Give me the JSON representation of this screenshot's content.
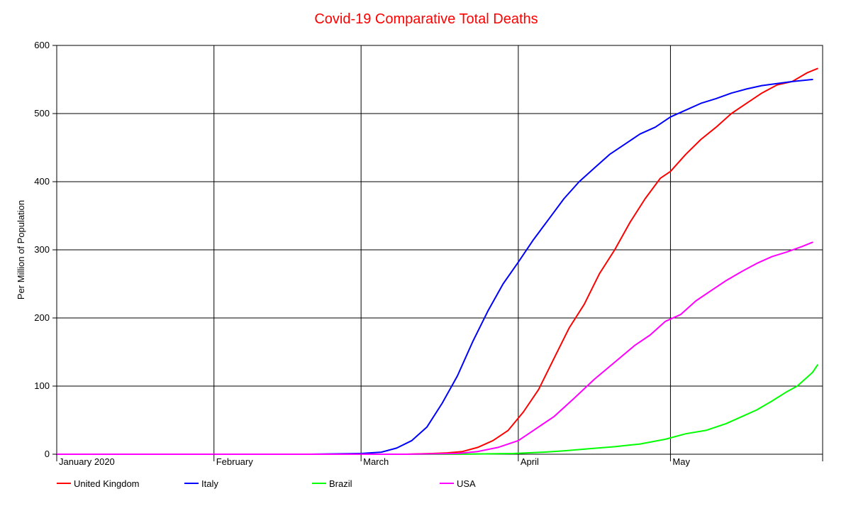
{
  "chart_data": {
    "type": "line",
    "title": "Covid-19 Comparative Total Deaths",
    "title_color": "#ff0000",
    "xlabel": "",
    "ylabel": "Per Million of Population",
    "x_range": [
      "2020-01-01",
      "2020-05-31"
    ],
    "ylim": [
      0,
      600
    ],
    "y_ticks": [
      0,
      100,
      200,
      300,
      400,
      500,
      600
    ],
    "y_tick_labels": [
      "0",
      "100",
      "200",
      "300",
      "400",
      "500",
      "600"
    ],
    "x_ticks": [
      {
        "date": "2020-01-01",
        "label": "January 2020"
      },
      {
        "date": "2020-02-01",
        "label": "February"
      },
      {
        "date": "2020-03-01",
        "label": "March"
      },
      {
        "date": "2020-04-01",
        "label": "April"
      },
      {
        "date": "2020-05-01",
        "label": "May"
      }
    ],
    "grid": true,
    "legend_position": "bottom",
    "series": [
      {
        "name": "United Kingdom",
        "color": "#ff0000",
        "points": [
          [
            "2020-01-01",
            0
          ],
          [
            "2020-03-01",
            0
          ],
          [
            "2020-03-10",
            0
          ],
          [
            "2020-03-15",
            1
          ],
          [
            "2020-03-18",
            2
          ],
          [
            "2020-03-21",
            4
          ],
          [
            "2020-03-24",
            10
          ],
          [
            "2020-03-27",
            20
          ],
          [
            "2020-03-30",
            35
          ],
          [
            "2020-04-02",
            62
          ],
          [
            "2020-04-05",
            95
          ],
          [
            "2020-04-08",
            140
          ],
          [
            "2020-04-11",
            185
          ],
          [
            "2020-04-14",
            220
          ],
          [
            "2020-04-17",
            265
          ],
          [
            "2020-04-20",
            300
          ],
          [
            "2020-04-23",
            340
          ],
          [
            "2020-04-26",
            375
          ],
          [
            "2020-04-29",
            405
          ],
          [
            "2020-05-01",
            415
          ],
          [
            "2020-05-04",
            440
          ],
          [
            "2020-05-07",
            462
          ],
          [
            "2020-05-10",
            480
          ],
          [
            "2020-05-13",
            500
          ],
          [
            "2020-05-16",
            515
          ],
          [
            "2020-05-19",
            530
          ],
          [
            "2020-05-22",
            542
          ],
          [
            "2020-05-25",
            547
          ],
          [
            "2020-05-28",
            560
          ],
          [
            "2020-05-30",
            566
          ]
        ]
      },
      {
        "name": "Italy",
        "color": "#0000ff",
        "points": [
          [
            "2020-01-01",
            0
          ],
          [
            "2020-02-20",
            0
          ],
          [
            "2020-03-01",
            1
          ],
          [
            "2020-03-05",
            3
          ],
          [
            "2020-03-08",
            9
          ],
          [
            "2020-03-11",
            20
          ],
          [
            "2020-03-14",
            40
          ],
          [
            "2020-03-17",
            75
          ],
          [
            "2020-03-20",
            115
          ],
          [
            "2020-03-23",
            165
          ],
          [
            "2020-03-26",
            210
          ],
          [
            "2020-03-29",
            250
          ],
          [
            "2020-04-01",
            282
          ],
          [
            "2020-04-04",
            315
          ],
          [
            "2020-04-07",
            345
          ],
          [
            "2020-04-10",
            375
          ],
          [
            "2020-04-13",
            400
          ],
          [
            "2020-04-16",
            420
          ],
          [
            "2020-04-19",
            440
          ],
          [
            "2020-04-22",
            455
          ],
          [
            "2020-04-25",
            470
          ],
          [
            "2020-04-28",
            480
          ],
          [
            "2020-05-01",
            495
          ],
          [
            "2020-05-04",
            505
          ],
          [
            "2020-05-07",
            515
          ],
          [
            "2020-05-10",
            522
          ],
          [
            "2020-05-13",
            530
          ],
          [
            "2020-05-16",
            536
          ],
          [
            "2020-05-19",
            541
          ],
          [
            "2020-05-22",
            544
          ],
          [
            "2020-05-25",
            547
          ],
          [
            "2020-05-29",
            550
          ]
        ]
      },
      {
        "name": "Brazil",
        "color": "#00ff00",
        "points": [
          [
            "2020-01-01",
            0
          ],
          [
            "2020-03-20",
            0
          ],
          [
            "2020-03-31",
            1
          ],
          [
            "2020-04-06",
            3
          ],
          [
            "2020-04-10",
            5
          ],
          [
            "2020-04-15",
            8
          ],
          [
            "2020-04-20",
            11
          ],
          [
            "2020-04-25",
            15
          ],
          [
            "2020-04-30",
            22
          ],
          [
            "2020-05-04",
            30
          ],
          [
            "2020-05-08",
            35
          ],
          [
            "2020-05-12",
            45
          ],
          [
            "2020-05-15",
            55
          ],
          [
            "2020-05-18",
            65
          ],
          [
            "2020-05-21",
            78
          ],
          [
            "2020-05-24",
            92
          ],
          [
            "2020-05-26",
            100
          ],
          [
            "2020-05-29",
            120
          ],
          [
            "2020-05-30",
            131
          ]
        ]
      },
      {
        "name": "USA",
        "color": "#ff00ff",
        "points": [
          [
            "2020-01-01",
            0
          ],
          [
            "2020-03-10",
            0
          ],
          [
            "2020-03-20",
            1
          ],
          [
            "2020-03-24",
            4
          ],
          [
            "2020-03-28",
            10
          ],
          [
            "2020-04-01",
            20
          ],
          [
            "2020-04-04",
            35
          ],
          [
            "2020-04-08",
            55
          ],
          [
            "2020-04-12",
            82
          ],
          [
            "2020-04-16",
            110
          ],
          [
            "2020-04-20",
            135
          ],
          [
            "2020-04-24",
            160
          ],
          [
            "2020-04-27",
            175
          ],
          [
            "2020-04-30",
            195
          ],
          [
            "2020-05-03",
            205
          ],
          [
            "2020-05-06",
            225
          ],
          [
            "2020-05-09",
            240
          ],
          [
            "2020-05-12",
            255
          ],
          [
            "2020-05-15",
            268
          ],
          [
            "2020-05-18",
            280
          ],
          [
            "2020-05-21",
            290
          ],
          [
            "2020-05-24",
            297
          ],
          [
            "2020-05-27",
            305
          ],
          [
            "2020-05-29",
            311
          ]
        ]
      }
    ]
  }
}
